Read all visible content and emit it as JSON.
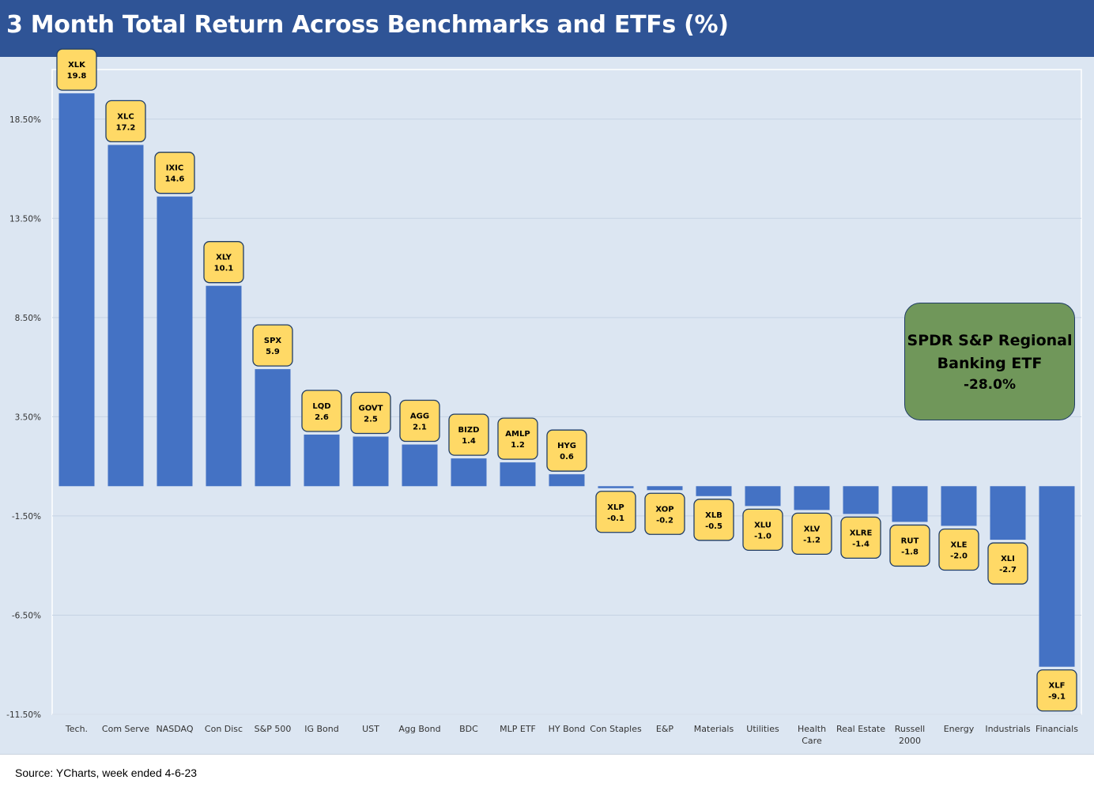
{
  "title": "3 Month Total Return Across Benchmarks and ETFs (%)",
  "source": "Source: YCharts, week ended 4-6-23",
  "callout": {
    "line1": "SPDR S&P Regional",
    "line2": "Banking ETF",
    "line3": "-28.0%"
  },
  "colors": {
    "header": "#2f5496",
    "bar": "#4472c4",
    "label_fill": "#ffd966",
    "label_border": "#1f3c66",
    "callout_fill": "#70975a",
    "plot_bg": "#dce6f2"
  },
  "chart_data": {
    "type": "bar",
    "title": "3 Month Total Return Across Benchmarks and ETFs (%)",
    "ylabel": "",
    "ylim": [
      -11.5,
      21.0
    ],
    "yticks": [
      -11.5,
      -6.5,
      -1.5,
      3.5,
      8.5,
      13.5,
      18.5
    ],
    "ytick_labels": [
      "-11.50%",
      "-6.50%",
      "-1.50%",
      "3.50%",
      "8.50%",
      "13.50%",
      "18.50%"
    ],
    "grid": true,
    "categories": [
      "Tech.",
      "Com Serve",
      "NASDAQ",
      "Con Disc",
      "S&P 500",
      "IG Bond",
      "UST",
      "Agg Bond",
      "BDC",
      "MLP ETF",
      "HY Bond",
      "Con Staples",
      "E&P",
      "Materials",
      "Utilities",
      "Health Care",
      "Real Estate",
      "Russell 2000",
      "Energy",
      "Industrials",
      "Financials"
    ],
    "tickers": [
      "XLK",
      "XLC",
      "IXIC",
      "XLY",
      "SPX",
      "LQD",
      "GOVT",
      "AGG",
      "BIZD",
      "AMLP",
      "HYG",
      "XLP",
      "XOP",
      "XLB",
      "XLU",
      "XLV",
      "XLRE",
      "RUT",
      "XLE",
      "XLI",
      "XLF"
    ],
    "values": [
      19.8,
      17.2,
      14.6,
      10.1,
      5.9,
      2.6,
      2.5,
      2.1,
      1.4,
      1.2,
      0.6,
      -0.1,
      -0.2,
      -0.5,
      -1.0,
      -1.2,
      -1.4,
      -1.8,
      -2.0,
      -2.7,
      -9.1
    ],
    "value_labels": [
      "19.8",
      "17.2",
      "14.6",
      "10.1",
      "5.9",
      "2.6",
      "2.5",
      "2.1",
      "1.4",
      "1.2",
      "0.6",
      "-0.1",
      "-0.2",
      "-0.5",
      "-1.0",
      "-1.2",
      "-1.4",
      "-1.8",
      "-2.0",
      "-2.7",
      "-9.1"
    ]
  }
}
